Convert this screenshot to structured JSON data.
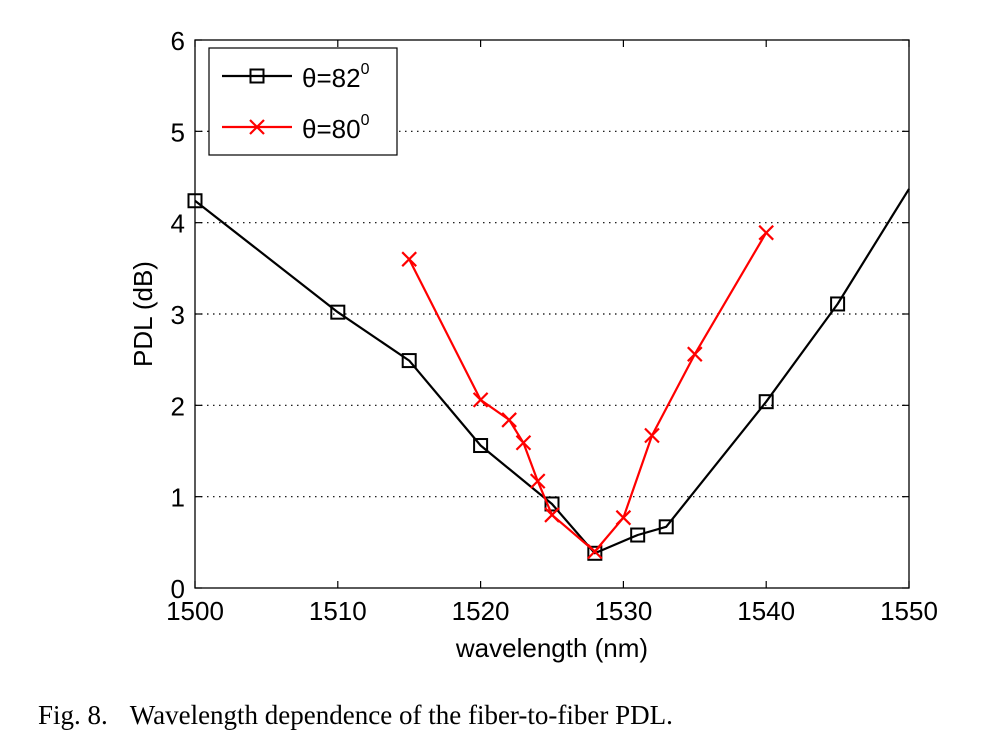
{
  "chart_data": {
    "type": "line",
    "xlabel": "wavelength (nm)",
    "ylabel": "PDL (dB)",
    "xlim": [
      1500,
      1550
    ],
    "ylim": [
      0,
      6
    ],
    "xticks": [
      "1500",
      "1510",
      "1520",
      "1530",
      "1540",
      "1550"
    ],
    "yticks": [
      "0",
      "1",
      "2",
      "3",
      "4",
      "5",
      "6"
    ],
    "grid": "horizontal dotted",
    "legend_position": "top-left",
    "series": [
      {
        "name": "θ=82",
        "name_sup": "0",
        "color": "#000000",
        "marker": "square",
        "x": [
          1500,
          1510,
          1515,
          1520,
          1525,
          1528,
          1531,
          1533,
          1540,
          1545,
          1550
        ],
        "y": [
          4.24,
          3.02,
          2.49,
          1.56,
          0.92,
          0.38,
          0.58,
          0.67,
          2.04,
          3.11,
          4.37
        ],
        "markers": [
          true,
          true,
          true,
          true,
          true,
          true,
          true,
          true,
          true,
          true,
          false
        ]
      },
      {
        "name": "θ=80",
        "name_sup": "0",
        "color": "#ff0000",
        "marker": "x",
        "x": [
          1515,
          1520,
          1522,
          1523,
          1524,
          1525,
          1528,
          1530,
          1532,
          1535,
          1540
        ],
        "y": [
          3.6,
          2.06,
          1.84,
          1.59,
          1.17,
          0.8,
          0.4,
          0.77,
          1.67,
          2.56,
          3.89
        ],
        "markers": [
          true,
          true,
          true,
          true,
          true,
          true,
          true,
          true,
          true,
          true,
          true
        ]
      }
    ]
  },
  "caption": {
    "label": "Fig. 8.",
    "text": "Wavelength dependence of the fiber-to-fiber PDL."
  }
}
